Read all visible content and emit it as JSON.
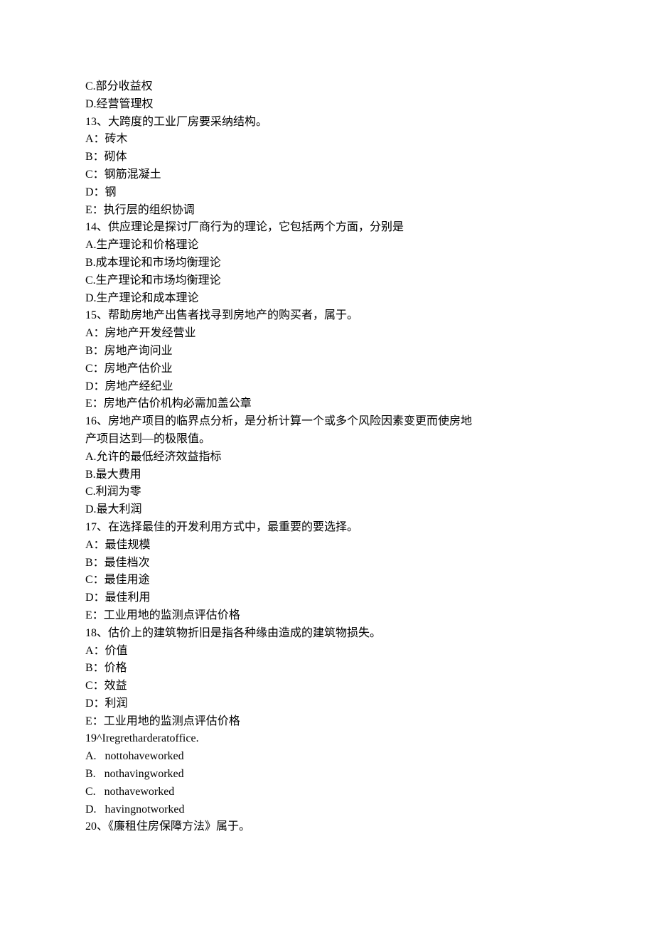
{
  "colors": {
    "text": "#000000",
    "background": "#ffffff"
  },
  "typography": {
    "font_family_cjk": "SimSun",
    "font_family_latin": "Times New Roman",
    "font_size_pt": 12,
    "line_height": 1.55
  },
  "lines": {
    "l01": "C.部分收益权",
    "l02": "D.经营管理权",
    "l03": "13、大跨度的工业厂房要采纳结构。",
    "l04": "A：砖木",
    "l05": "B：砌体",
    "l06": "C：钢筋混凝土",
    "l07": "D：钢",
    "l08": "E：执行层的组织协调",
    "l09": "14、供应理论是探讨厂商行为的理论，它包括两个方面，分别是",
    "l10": "A.生产理论和价格理论",
    "l11": "B.成本理论和市场均衡理论",
    "l12": "C.生产理论和市场均衡理论",
    "l13": "D.生产理论和成本理论",
    "l14": "15、帮助房地产出售者找寻到房地产的购买者，属于。",
    "l15": "A：房地产开发经营业",
    "l16": "B：房地产询问业",
    "l17": "C：房地产估价业",
    "l18": "D：房地产经纪业",
    "l19": "E：房地产估价机构必需加盖公章",
    "l20": "16、房地产项目的临界点分析，是分析计算一个或多个风险因素变更而使房地",
    "l21": "产项目达到—的极限值。",
    "l22": "A.允许的最低经济效益指标",
    "l23": "B.最大费用",
    "l24": "C.利润为零",
    "l25": "D.最大利润",
    "l26": "17、在选择最佳的开发利用方式中，最重要的要选择。",
    "l27": "A：最佳规模",
    "l28": "B：最佳档次",
    "l29": "C：最佳用途",
    "l30": "D：最佳利用",
    "l31": "E：工业用地的监测点评估价格",
    "l32": "18、估价上的建筑物折旧是指各种缘由造成的建筑物损失。",
    "l33": "A：价值",
    "l34": "B：价格",
    "l35": "C：效益",
    "l36": "D：利润",
    "l37": "E：工业用地的监测点评估价格",
    "l38": "19^Iregretharderatoffice.",
    "l39": "A.   nottohaveworked",
    "l40": "B.   nothavingworked",
    "l41": "C.   nothaveworked",
    "l42": "D.   havingnotworked",
    "l43": "20、《廉租住房保障方法》属于。"
  }
}
